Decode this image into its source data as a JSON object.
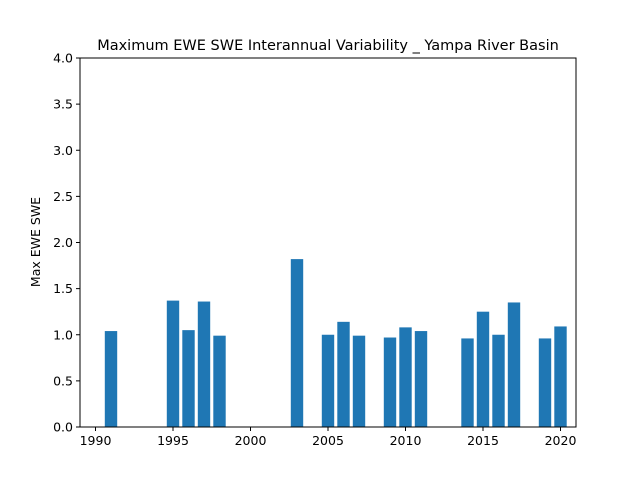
{
  "chart_data": {
    "type": "bar",
    "title": "Maximum EWE SWE Interannual Variability _ Yampa River Basin",
    "xlabel": "",
    "ylabel": "Max EWE SWE",
    "bar_color": "#1f77b4",
    "xlim": [
      1989,
      2021
    ],
    "ylim": [
      0,
      4.0
    ],
    "x_ticks": [
      1990,
      1995,
      2000,
      2005,
      2010,
      2015,
      2020
    ],
    "y_ticks": [
      "0.0",
      "0.5",
      "1.0",
      "1.5",
      "2.0",
      "2.5",
      "3.0",
      "3.5",
      "4.0"
    ],
    "grid": false,
    "x": [
      1991,
      1995,
      1996,
      1997,
      1998,
      2003,
      2005,
      2006,
      2007,
      2009,
      2010,
      2011,
      2014,
      2015,
      2016,
      2017,
      2019,
      2020
    ],
    "values": [
      1.04,
      1.37,
      1.05,
      1.36,
      0.99,
      1.82,
      1.0,
      1.14,
      0.99,
      0.97,
      1.08,
      1.04,
      0.96,
      1.25,
      1.0,
      1.35,
      0.96,
      1.09
    ]
  }
}
